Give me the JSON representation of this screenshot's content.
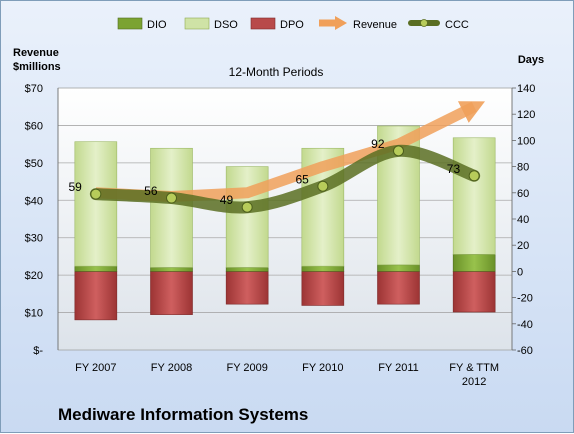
{
  "company": "Mediware Information Systems",
  "chart_data": {
    "type": "bar",
    "title": "12-Month Periods",
    "y_left_label": [
      "Revenue",
      "$millions"
    ],
    "y_right_label": "Days",
    "ylim_left": [
      0,
      70
    ],
    "ylim_right": [
      -60,
      140
    ],
    "y_left_ticks": [
      "$-",
      "$10",
      "$20",
      "$30",
      "$40",
      "$50",
      "$60",
      "$70"
    ],
    "y_right_ticks": [
      "-60",
      "-40",
      "-20",
      "0",
      "20",
      "40",
      "60",
      "80",
      "100",
      "120",
      "140"
    ],
    "categories": [
      "FY 2007",
      "FY 2008",
      "FY 2009",
      "FY 2010",
      "FY 2011",
      "FY & TTM\n2012"
    ],
    "legend": [
      "DIO",
      "DSO",
      "DPO",
      "Revenue",
      "CCC"
    ],
    "legend_position": "top",
    "grid": true,
    "colors": {
      "dio": "#7ba332",
      "dso": "#cfe3a6",
      "dpo": "#b84a4a",
      "revenue": "#f0a05a",
      "ccc": "#5a6e22"
    },
    "series": [
      {
        "name": "DIO",
        "axis": "right",
        "values": [
          4,
          3,
          3,
          4,
          5,
          13
        ]
      },
      {
        "name": "DSO",
        "axis": "right",
        "values": [
          95,
          91,
          77,
          90,
          106,
          89
        ]
      },
      {
        "name": "DPO",
        "axis": "right",
        "values": [
          -37,
          -33,
          -25,
          -26,
          -25,
          -31
        ]
      },
      {
        "name": "Revenue",
        "axis": "left",
        "values": [
          42,
          41,
          42,
          49,
          55,
          65
        ]
      },
      {
        "name": "CCC",
        "axis": "right",
        "values": [
          59,
          56,
          49,
          65,
          92,
          73
        ]
      }
    ],
    "data_labels": [
      "59",
      "56",
      "49",
      "65",
      "92",
      "73"
    ]
  }
}
